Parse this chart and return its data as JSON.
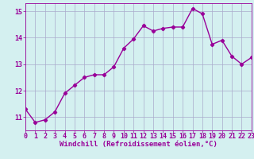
{
  "hours": [
    0,
    1,
    2,
    3,
    4,
    5,
    6,
    7,
    8,
    9,
    10,
    11,
    12,
    13,
    14,
    15,
    16,
    17,
    18,
    19,
    20,
    21,
    22,
    23
  ],
  "windchill": [
    11.3,
    10.8,
    10.9,
    11.2,
    11.9,
    12.2,
    12.5,
    12.6,
    12.6,
    12.9,
    13.6,
    13.95,
    14.45,
    14.25,
    14.35,
    14.4,
    14.4,
    15.1,
    14.9,
    13.75,
    13.9,
    13.3,
    13.0,
    13.25
  ],
  "xlabel": "Windchill (Refroidissement éolien,°C)",
  "ylim": [
    10.5,
    15.3
  ],
  "xlim": [
    0,
    23
  ],
  "yticks": [
    11,
    12,
    13,
    14,
    15
  ],
  "xticks": [
    0,
    1,
    2,
    3,
    4,
    5,
    6,
    7,
    8,
    9,
    10,
    11,
    12,
    13,
    14,
    15,
    16,
    17,
    18,
    19,
    20,
    21,
    22,
    23
  ],
  "line_color": "#990099",
  "marker": "D",
  "marker_size": 2.2,
  "bg_color": "#d4f0f0",
  "grid_color": "#aaaacc",
  "xlabel_fontsize": 6.5,
  "tick_fontsize": 6.0,
  "line_width": 1.0
}
